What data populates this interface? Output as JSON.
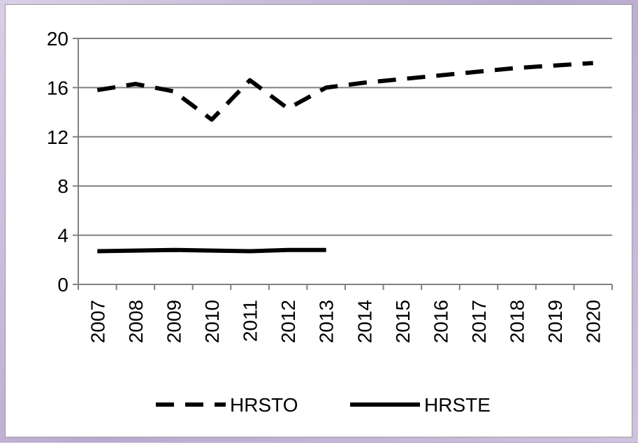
{
  "chart_data": {
    "type": "line",
    "title": "",
    "xlabel": "",
    "ylabel": "",
    "x": [
      "2007",
      "2008",
      "2009",
      "2010",
      "2011",
      "2012",
      "2013",
      "2014",
      "2015",
      "2016",
      "2017",
      "2018",
      "2019",
      "2020"
    ],
    "ylim": [
      0,
      20
    ],
    "yticks": [
      "0",
      "4",
      "8",
      "12",
      "16",
      "20"
    ],
    "grid": true,
    "legend_position": "bottom",
    "series": [
      {
        "name": "HRSTO",
        "style": "dashed",
        "color": "#000000",
        "values": [
          15.8,
          16.3,
          15.7,
          13.4,
          16.6,
          14.3,
          16.0,
          16.4,
          16.7,
          17.0,
          17.3,
          17.6,
          17.8,
          18.0
        ]
      },
      {
        "name": "HRSTE",
        "style": "solid",
        "color": "#000000",
        "values": [
          2.7,
          2.75,
          2.8,
          2.75,
          2.7,
          2.8,
          2.8,
          null,
          null,
          null,
          null,
          null,
          null,
          null
        ]
      }
    ]
  }
}
